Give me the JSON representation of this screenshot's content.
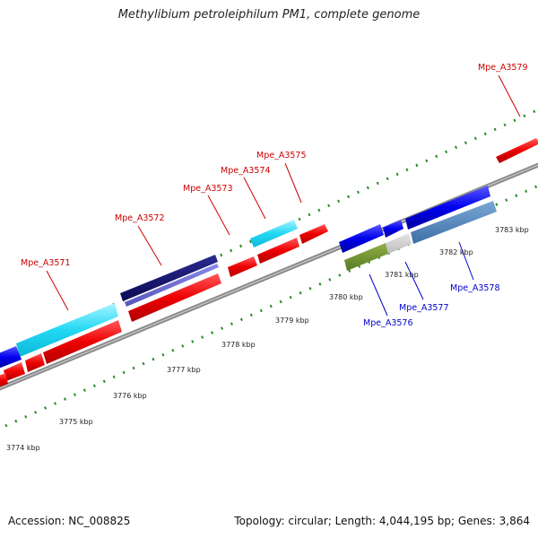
{
  "title": "Methylibium petroleiphilum PM1, complete genome",
  "footer": {
    "accession": "Accession: NC_008825",
    "summary": "Topology: circular; Length: 4,044,195 bp; Genes: 3,864"
  },
  "colors": {
    "backbone": "#888888",
    "tick_green": "#2a8a2a",
    "label_red": "#cc0000",
    "label_blue": "#0000cc"
  },
  "scale_labels": [
    "3774 kbp",
    "3775 kbp",
    "3776 kbp",
    "3777 kbp",
    "3778 kbp",
    "3779 kbp",
    "3780 kbp",
    "3781 kbp",
    "3782 kbp",
    "3783 kbp"
  ],
  "gene_labels": {
    "mpe_a3571": "Mpe_A3571",
    "mpe_a3572": "Mpe_A3572",
    "mpe_a3573": "Mpe_A3573",
    "mpe_a3574": "Mpe_A3574",
    "mpe_a3575": "Mpe_A3575",
    "mpe_a3576": "Mpe_A3576",
    "mpe_a3577": "Mpe_A3577",
    "mpe_a3578": "Mpe_A3578",
    "mpe_a3579": "Mpe_A3579"
  }
}
